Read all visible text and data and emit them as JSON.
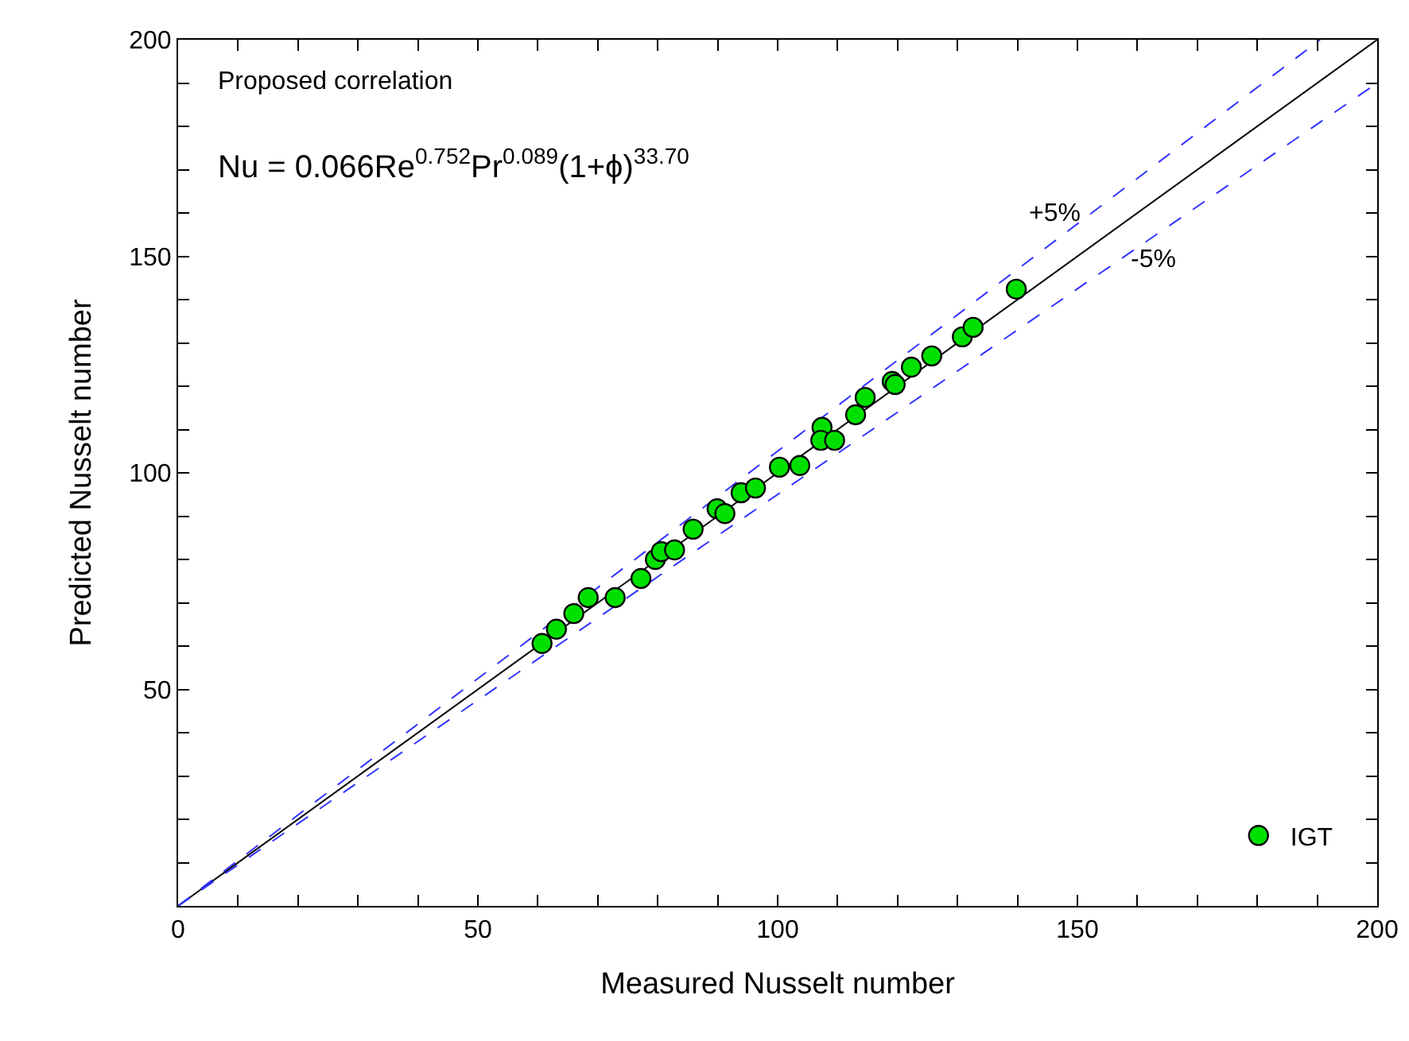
{
  "chart_data": {
    "type": "scatter",
    "xlabel": "Measured Nusselt number",
    "ylabel": "Predicted Nusselt number",
    "annotations": [
      "Proposed correlation",
      "Nu = 0.066Re$^{0.752}$Pr$^{0.089}$(1+ϕ)$^{33.70}$",
      {
        "text": "+5%",
        "x": 152.4,
        "y": 160
      },
      {
        "text": "-5%",
        "x": 156.8,
        "y": 149
      }
    ],
    "xlim": [
      0,
      200
    ],
    "ylim": [
      0,
      200
    ],
    "xticks": [
      0,
      {
        "value": 10,
        "label": null
      },
      {
        "value": 20,
        "label": null
      },
      {
        "value": 30,
        "label": null
      },
      {
        "value": 40,
        "label": null
      },
      50,
      {
        "value": 60,
        "label": null
      },
      {
        "value": 70,
        "label": null
      },
      {
        "value": 80,
        "label": null
      },
      {
        "value": 90,
        "label": null
      },
      100,
      {
        "value": 110,
        "label": null
      },
      {
        "value": 120,
        "label": null
      },
      {
        "value": 130,
        "label": null
      },
      {
        "value": 140,
        "label": null
      },
      150,
      {
        "value": 160,
        "label": null
      },
      {
        "value": 170,
        "label": null
      },
      {
        "value": 180,
        "label": null
      },
      {
        "value": 190,
        "label": null
      },
      200
    ],
    "yticks": [
      {
        "value": 10,
        "label": null
      },
      {
        "value": 20,
        "label": null
      },
      {
        "value": 30,
        "label": null
      },
      {
        "value": 40,
        "label": null
      },
      50,
      {
        "value": 60,
        "label": null
      },
      {
        "value": 70,
        "label": null
      },
      {
        "value": 80,
        "label": null
      },
      {
        "value": 90,
        "label": null
      },
      100,
      {
        "value": 110,
        "label": null
      },
      {
        "value": 120,
        "label": null
      },
      {
        "value": 130,
        "label": null
      },
      {
        "value": 140,
        "label": null
      },
      150,
      {
        "value": 160,
        "label": null
      },
      {
        "value": 170,
        "label": null
      },
      {
        "value": 180,
        "label": null
      },
      {
        "value": 190,
        "label": null
      },
      200
    ],
    "grid": false,
    "legend": "bottom right",
    "series": [
      {
        "name": "IGT",
        "color": "#00e000",
        "marker": "circle",
        "x": [
          60.7,
          63.1,
          66.0,
          68.4,
          72.9,
          77.2,
          79.6,
          80.6,
          82.8,
          85.9,
          89.9,
          91.2,
          93.9,
          96.3,
          100.3,
          103.7,
          107.4,
          107.2,
          109.5,
          113.0,
          114.6,
          119.1,
          119.6,
          122.3,
          125.7,
          130.8,
          132.6,
          139.8
        ],
        "values": [
          60.6,
          63.9,
          67.5,
          71.2,
          71.2,
          75.6,
          80.0,
          81.8,
          82.2,
          87.0,
          91.7,
          90.6,
          95.4,
          96.5,
          101.3,
          101.7,
          110.5,
          107.5,
          107.5,
          113.4,
          117.4,
          121.1,
          120.4,
          124.4,
          127.0,
          131.4,
          133.6,
          142.4
        ]
      },
      {
        "type": "line",
        "color": "#000000",
        "line_style": "solid",
        "marker": "none",
        "x": [
          0,
          200
        ],
        "values": [
          0,
          200
        ]
      },
      {
        "type": "line",
        "color": "#3333ff",
        "line_style": "dashed",
        "marker": "none",
        "x": [
          0,
          190.48
        ],
        "values": [
          0,
          200
        ]
      },
      {
        "type": "line",
        "color": "#3333ff",
        "line_style": "dashed",
        "marker": "none",
        "x": [
          0,
          200
        ],
        "values": [
          0,
          190
        ]
      }
    ]
  }
}
